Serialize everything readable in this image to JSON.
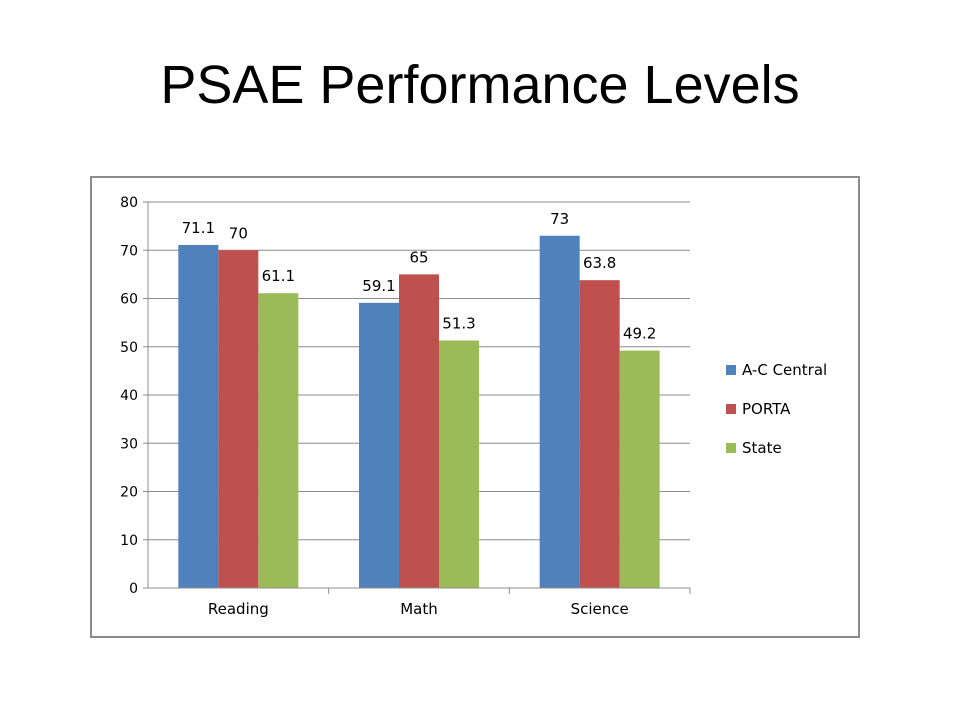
{
  "slide": {
    "title": "PSAE Performance Levels"
  },
  "chart_data": {
    "type": "bar",
    "title": "",
    "xlabel": "",
    "ylabel": "",
    "categories": [
      "Reading",
      "Math",
      "Science"
    ],
    "series": [
      {
        "name": "A-C Central",
        "values": [
          71.1,
          59.1,
          73
        ],
        "color": "#4f81bd"
      },
      {
        "name": "PORTA",
        "values": [
          70,
          65,
          63.8
        ],
        "color": "#c0504d"
      },
      {
        "name": "State",
        "values": [
          61.1,
          51.3,
          49.2
        ],
        "color": "#9bbb59"
      }
    ],
    "ylim": [
      0,
      80
    ],
    "yticks": [
      0,
      10,
      20,
      30,
      40,
      50,
      60,
      70,
      80
    ],
    "grid": true,
    "data_labels": true,
    "legend": "right"
  }
}
